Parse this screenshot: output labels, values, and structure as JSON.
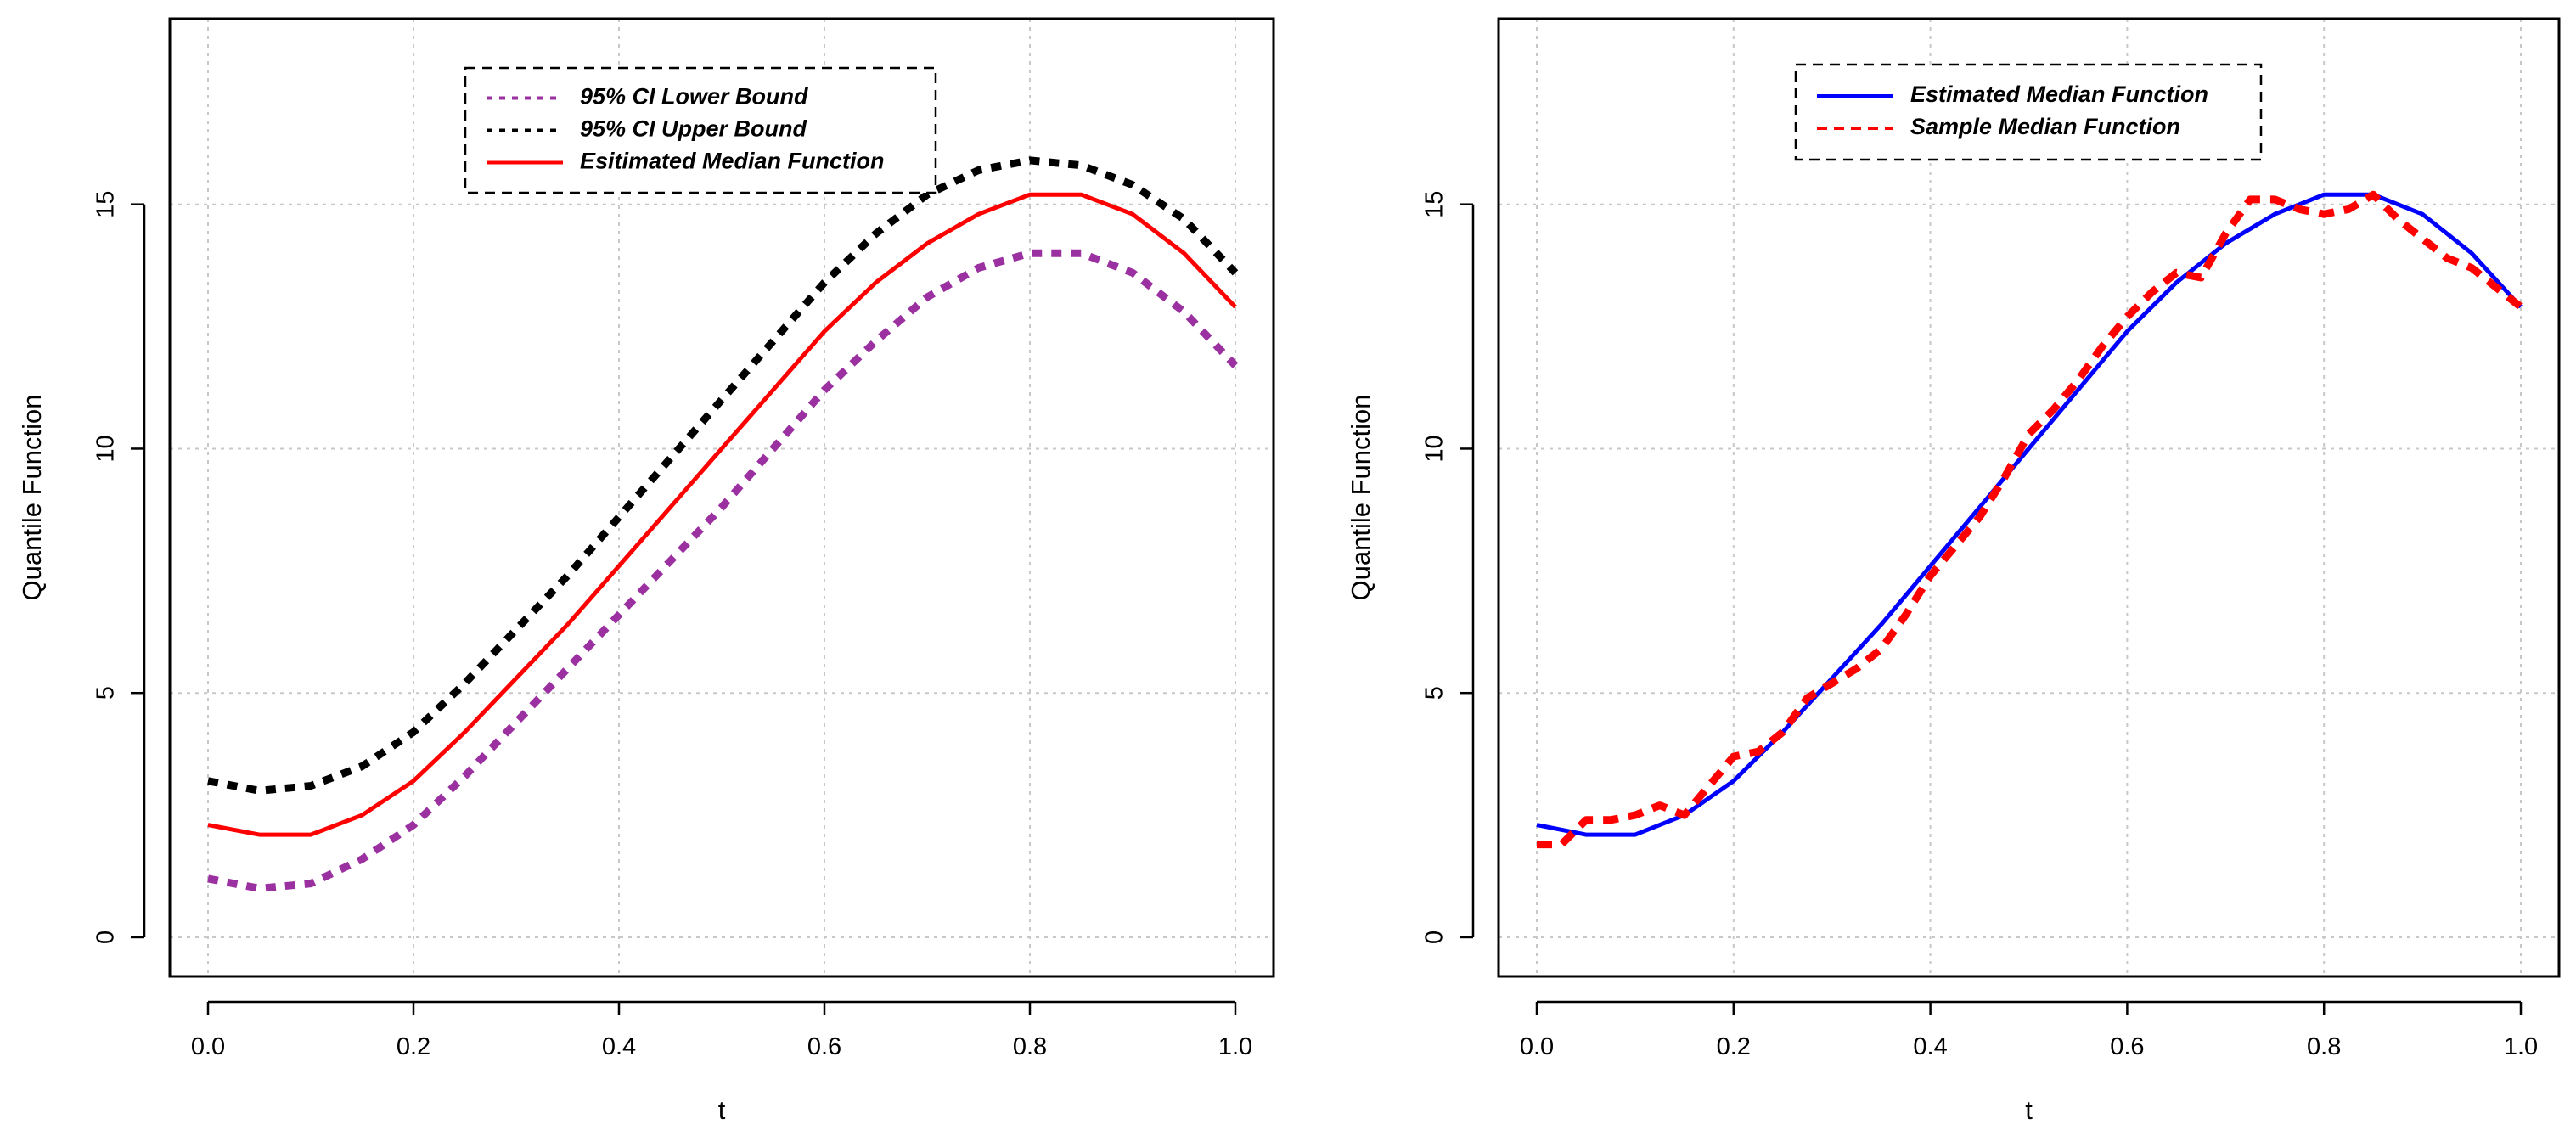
{
  "chart_data": [
    {
      "type": "line",
      "title": "",
      "xlabel": "t",
      "ylabel": "Quantile Function",
      "xlim": [
        0,
        1
      ],
      "ylim": [
        -0.8,
        18.8
      ],
      "grid": true,
      "legend_position": "top-center",
      "x_ticks": [
        "0.0",
        "0.2",
        "0.4",
        "0.6",
        "0.8",
        "1.0"
      ],
      "y_ticks": [
        "0",
        "5",
        "10",
        "15"
      ],
      "x": [
        0,
        0.05,
        0.1,
        0.15,
        0.2,
        0.25,
        0.3,
        0.35,
        0.4,
        0.45,
        0.5,
        0.55,
        0.6,
        0.65,
        0.7,
        0.75,
        0.8,
        0.85,
        0.9,
        0.95,
        1.0
      ],
      "series": [
        {
          "name": "95% CI Lower Bound",
          "color": "#9B30A0",
          "style": "dotted",
          "values": [
            1.2,
            1.0,
            1.1,
            1.6,
            2.3,
            3.3,
            4.4,
            5.5,
            6.6,
            7.7,
            8.8,
            10.0,
            11.2,
            12.2,
            13.1,
            13.7,
            14.0,
            14.0,
            13.6,
            12.8,
            11.7
          ]
        },
        {
          "name": "95% CI Upper Bound",
          "color": "#000000",
          "style": "dotted",
          "values": [
            3.2,
            3.0,
            3.1,
            3.5,
            4.2,
            5.2,
            6.3,
            7.4,
            8.6,
            9.8,
            11.0,
            12.2,
            13.4,
            14.4,
            15.2,
            15.7,
            15.9,
            15.8,
            15.4,
            14.7,
            13.6
          ]
        },
        {
          "name": "Esitimated Median Function",
          "color": "#FF0000",
          "style": "solid",
          "values": [
            2.3,
            2.1,
            2.1,
            2.5,
            3.2,
            4.2,
            5.3,
            6.4,
            7.6,
            8.8,
            10.0,
            11.2,
            12.4,
            13.4,
            14.2,
            14.8,
            15.2,
            15.2,
            14.8,
            14.0,
            12.9
          ]
        }
      ],
      "legend": [
        "95% CI Lower Bound",
        "95% CI Upper Bound",
        "Esitimated Median Function"
      ]
    },
    {
      "type": "line",
      "title": "",
      "xlabel": "t",
      "ylabel": "Quantile Function",
      "xlim": [
        0,
        1
      ],
      "ylim": [
        -0.8,
        18.8
      ],
      "grid": true,
      "legend_position": "top-center",
      "x_ticks": [
        "0.0",
        "0.2",
        "0.4",
        "0.6",
        "0.8",
        "1.0"
      ],
      "y_ticks": [
        "0",
        "5",
        "10",
        "15"
      ],
      "series": [
        {
          "name": "Estimated Median Function",
          "color": "#0000FF",
          "style": "solid",
          "x": [
            0,
            0.05,
            0.1,
            0.15,
            0.2,
            0.25,
            0.3,
            0.35,
            0.4,
            0.45,
            0.5,
            0.55,
            0.6,
            0.65,
            0.7,
            0.75,
            0.8,
            0.85,
            0.9,
            0.95,
            1.0
          ],
          "values": [
            2.3,
            2.1,
            2.1,
            2.5,
            3.2,
            4.2,
            5.3,
            6.4,
            7.6,
            8.8,
            10.0,
            11.2,
            12.4,
            13.4,
            14.2,
            14.8,
            15.2,
            15.2,
            14.8,
            14.0,
            12.9
          ]
        },
        {
          "name": "Sample Median Function",
          "color": "#FF0000",
          "style": "dashed",
          "x": [
            0,
            0.025,
            0.05,
            0.075,
            0.1,
            0.125,
            0.15,
            0.175,
            0.2,
            0.225,
            0.25,
            0.275,
            0.3,
            0.325,
            0.35,
            0.375,
            0.4,
            0.425,
            0.45,
            0.475,
            0.5,
            0.525,
            0.55,
            0.575,
            0.6,
            0.625,
            0.65,
            0.675,
            0.7,
            0.725,
            0.75,
            0.775,
            0.8,
            0.825,
            0.85,
            0.875,
            0.9,
            0.925,
            0.95,
            0.975,
            1.0
          ],
          "values": [
            1.9,
            1.9,
            2.4,
            2.4,
            2.5,
            2.7,
            2.5,
            3.1,
            3.7,
            3.8,
            4.2,
            4.9,
            5.2,
            5.5,
            5.9,
            6.6,
            7.4,
            8.0,
            8.6,
            9.4,
            10.3,
            10.8,
            11.4,
            12.1,
            12.7,
            13.2,
            13.6,
            13.5,
            14.4,
            15.1,
            15.1,
            14.9,
            14.8,
            14.9,
            15.2,
            14.7,
            14.3,
            13.9,
            13.7,
            13.3,
            12.9
          ]
        }
      ],
      "legend": [
        "Estimated Median Function",
        "Sample Median Function"
      ]
    }
  ]
}
